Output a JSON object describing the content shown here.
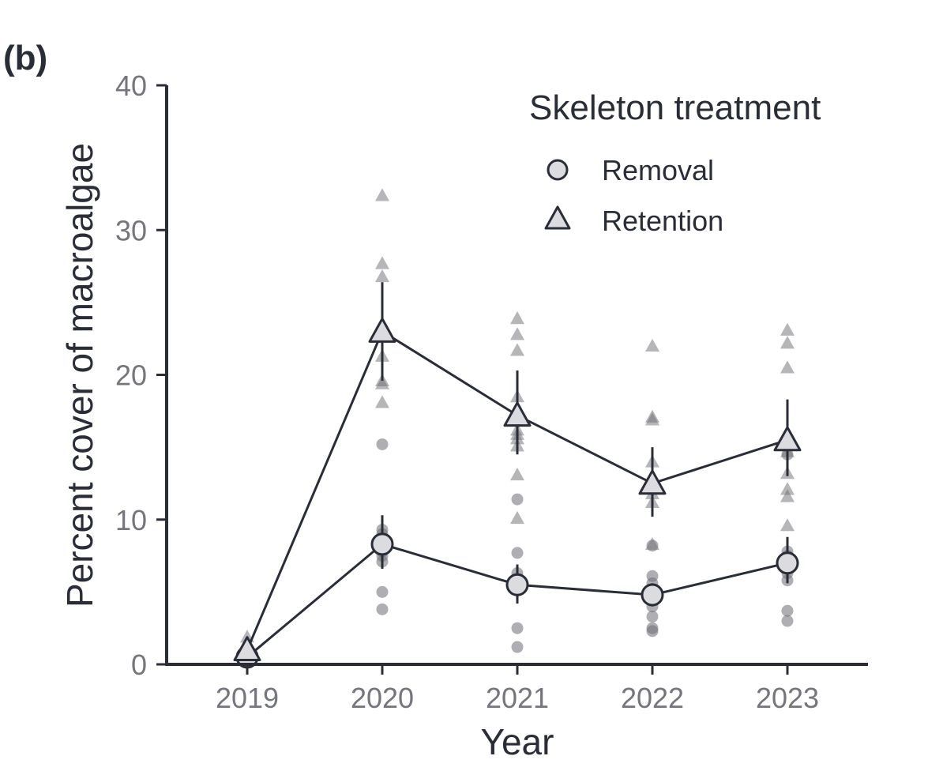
{
  "chart_data": {
    "type": "line",
    "panel_label": "(b)",
    "xlabel": "Year",
    "ylabel": "Percent cover of macroalgae",
    "x": [
      "2019",
      "2020",
      "2021",
      "2022",
      "2023"
    ],
    "ylim": [
      0,
      40
    ],
    "yticks": [
      0,
      10,
      20,
      30,
      40
    ],
    "legend": {
      "title": "Skeleton treatment",
      "position": "top-right",
      "entries": [
        "Removal",
        "Retention"
      ]
    },
    "colors": {
      "line": "#2a2d36",
      "marker_fill": "#dcdce0",
      "raw_points": "#6e6e74",
      "axis": "#2a2d36",
      "tick_label": "#75767c"
    },
    "series": [
      {
        "name": "Removal",
        "marker": "circle",
        "values": [
          0.5,
          8.3,
          5.5,
          4.8,
          7.0
        ],
        "error_low": [
          0.3,
          6.6,
          4.2,
          4.0,
          5.6
        ],
        "error_high": [
          0.7,
          10.3,
          6.9,
          5.6,
          8.8
        ],
        "raw": [
          [
            0.5,
            0.5,
            0.5,
            0.5
          ],
          [
            15.2,
            9.3,
            9.0,
            8.6,
            8.3,
            7.8,
            7.5,
            7.1,
            5.0,
            3.8
          ],
          [
            11.4,
            7.7,
            6.3,
            5.6,
            5.2,
            2.5,
            1.2
          ],
          [
            8.2,
            6.1,
            5.6,
            5.2,
            4.0,
            3.3,
            2.5,
            2.3
          ],
          [
            14.5,
            7.8,
            7.5,
            6.3,
            5.8,
            3.7,
            3.0
          ]
        ]
      },
      {
        "name": "Retention",
        "marker": "triangle",
        "values": [
          1.0,
          23.0,
          17.2,
          12.5,
          15.5
        ],
        "error_low": [
          0.5,
          19.6,
          14.5,
          10.2,
          13.0
        ],
        "error_high": [
          1.6,
          26.4,
          20.3,
          15.0,
          18.3
        ],
        "raw": [
          [
            1.9,
            1.5,
            1.2,
            1.0,
            0.8
          ],
          [
            32.4,
            27.7,
            26.8,
            23.5,
            21.3,
            19.6,
            19.4,
            18.1
          ],
          [
            23.9,
            22.8,
            21.7,
            18.5,
            16.2,
            15.9,
            15.6,
            15.1,
            13.1,
            10.1
          ],
          [
            22.0,
            17.1,
            16.9,
            14.0,
            12.4,
            11.8,
            11.2,
            8.3
          ],
          [
            23.1,
            22.2,
            20.5,
            14.7,
            13.2,
            12.1,
            11.6,
            9.6
          ]
        ]
      }
    ]
  }
}
